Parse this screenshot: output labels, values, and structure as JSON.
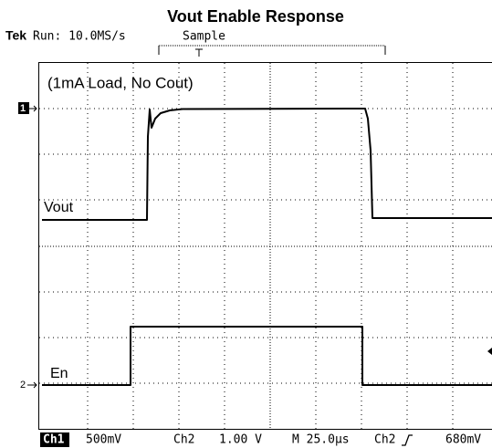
{
  "header": {
    "title": "Vout Enable Response",
    "brand": "Tek",
    "run": "Run: 10.0MS/s",
    "mode": "Sample"
  },
  "screen": {
    "annotation": "(1mA Load, No Cout)",
    "traces": [
      {
        "label": "Vout",
        "marker": "1"
      },
      {
        "label": "En",
        "marker": "2"
      }
    ]
  },
  "status": {
    "ch1": "Ch1",
    "ch1_scale": "500mV",
    "ch2": "Ch2",
    "ch2_scale": "1.00 V",
    "timebase": "M 25.0µs",
    "trigger_source": "Ch2",
    "trigger_level": "680mV"
  }
}
